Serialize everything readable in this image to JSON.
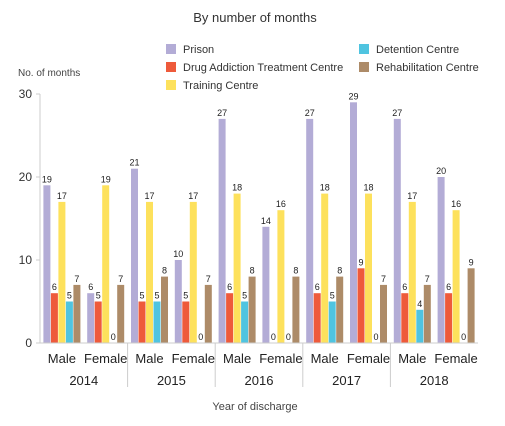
{
  "chart_data": {
    "type": "bar",
    "title": "By number of months",
    "ylabel": "No. of months",
    "xlabel": "Year of discharge",
    "ylim": [
      0,
      30
    ],
    "yticks": [
      0,
      10,
      20,
      30
    ],
    "grid": false,
    "legend_position": "top",
    "groups": [
      {
        "year": "2014",
        "categories": [
          "Male",
          "Female"
        ]
      },
      {
        "year": "2015",
        "categories": [
          "Male",
          "Female"
        ]
      },
      {
        "year": "2016",
        "categories": [
          "Male",
          "Female"
        ]
      },
      {
        "year": "2017",
        "categories": [
          "Male",
          "Female"
        ]
      },
      {
        "year": "2018",
        "categories": [
          "Male",
          "Female"
        ]
      }
    ],
    "series": [
      {
        "name": "Prison",
        "color": "#b3acd6",
        "values": [
          19,
          6,
          21,
          10,
          27,
          14,
          27,
          29,
          27,
          20
        ]
      },
      {
        "name": "Drug Addiction Treatment Centre",
        "color": "#ee5a3b",
        "values": [
          6,
          5,
          5,
          5,
          6,
          0,
          6,
          9,
          6,
          6
        ]
      },
      {
        "name": "Training Centre",
        "color": "#fde15c",
        "values": [
          17,
          19,
          17,
          17,
          18,
          16,
          18,
          18,
          17,
          16
        ]
      },
      {
        "name": "Detention Centre",
        "color": "#4fc4e0",
        "values": [
          5,
          0,
          5,
          0,
          5,
          0,
          5,
          0,
          4,
          0
        ]
      },
      {
        "name": "Rehabilitation Centre",
        "color": "#ad8b68",
        "values": [
          7,
          7,
          8,
          7,
          8,
          8,
          8,
          7,
          7,
          9
        ]
      }
    ],
    "legend_order": [
      "Prison",
      "Detention Centre",
      "Drug Addiction Treatment Centre",
      "Rehabilitation Centre",
      "Training Centre"
    ]
  }
}
